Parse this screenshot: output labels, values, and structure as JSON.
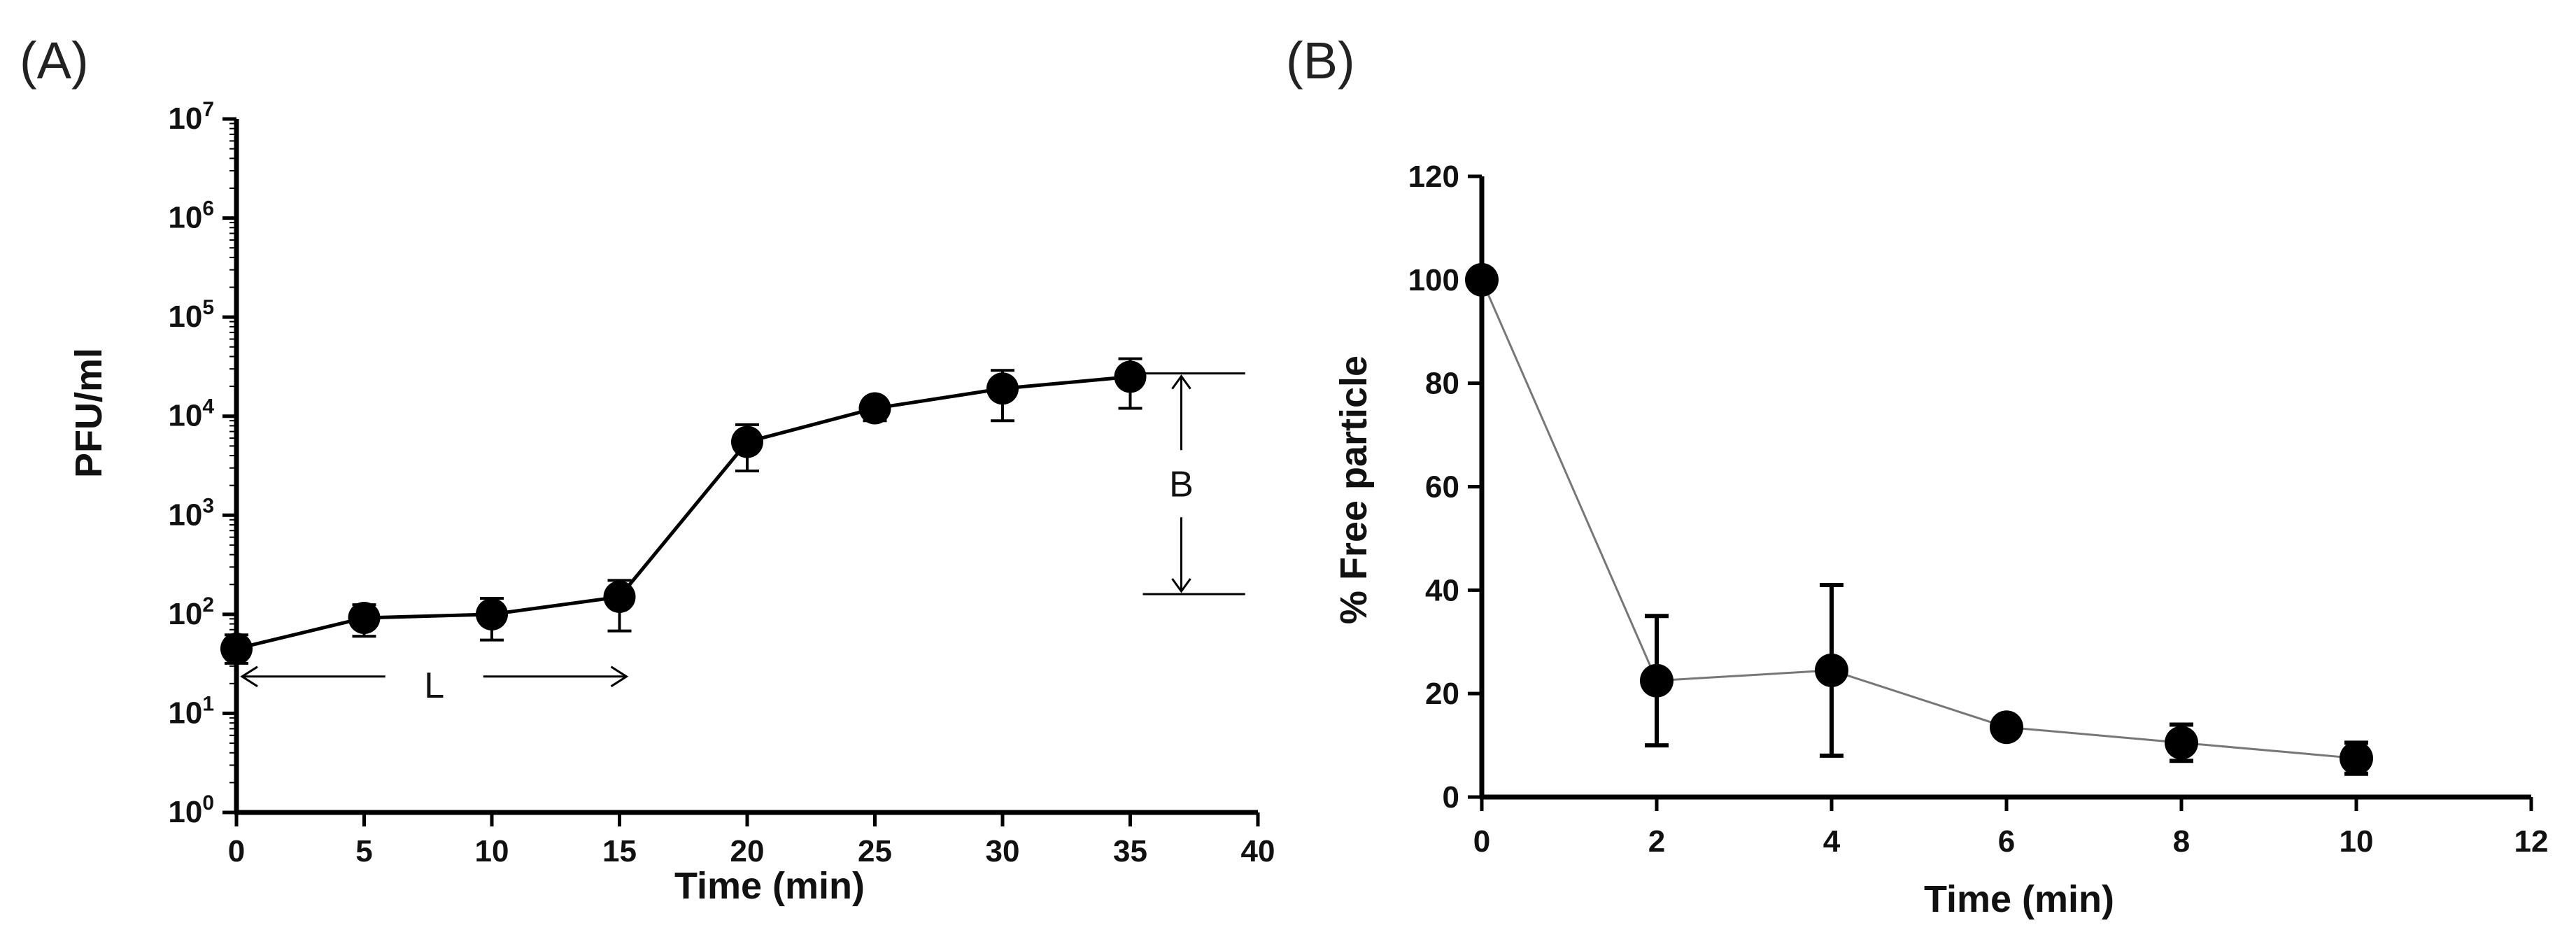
{
  "chart_data": [
    {
      "id": "A",
      "panel_label": "(A)",
      "type": "line",
      "yscale": "log",
      "xlabel": "Time (min)",
      "ylabel": "PFU/ml",
      "xlim": [
        0,
        40
      ],
      "ylim": [
        1,
        10000000
      ],
      "xticks": [
        0,
        5,
        10,
        15,
        20,
        25,
        30,
        35,
        40
      ],
      "yticks": [
        {
          "value": 1,
          "base": "10",
          "exp": "0"
        },
        {
          "value": 10,
          "base": "10",
          "exp": "1"
        },
        {
          "value": 100,
          "base": "10",
          "exp": "2"
        },
        {
          "value": 1000,
          "base": "10",
          "exp": "3"
        },
        {
          "value": 10000,
          "base": "10",
          "exp": "4"
        },
        {
          "value": 100000,
          "base": "10",
          "exp": "5"
        },
        {
          "value": 1000000,
          "base": "10",
          "exp": "6"
        },
        {
          "value": 10000000,
          "base": "10",
          "exp": "7"
        }
      ],
      "series": [
        {
          "name": "PFU/ml",
          "x": [
            0,
            5,
            10,
            15,
            20,
            25,
            30,
            35
          ],
          "y": [
            45,
            92,
            100,
            150,
            5500,
            12000,
            19000,
            25000
          ],
          "err_low": [
            32,
            60,
            55,
            68,
            2800,
            9000,
            9000,
            12000
          ],
          "err_high": [
            62,
            125,
            145,
            220,
            8200,
            15000,
            29000,
            38000
          ]
        }
      ],
      "annotations": {
        "latent": {
          "label": "L",
          "x_start": 0,
          "x_end": 15,
          "y": 20
        },
        "burst": {
          "label": "B",
          "x": 37,
          "y_low": 160,
          "y_high": 27000,
          "x_line_end": 39.5
        }
      }
    },
    {
      "id": "B",
      "panel_label": "(B)",
      "type": "line",
      "yscale": "linear",
      "xlabel": "Time (min)",
      "ylabel": "% Free particle",
      "xlim": [
        0,
        12
      ],
      "ylim": [
        0,
        120
      ],
      "xticks": [
        0,
        2,
        4,
        6,
        8,
        10,
        12
      ],
      "yticks": [
        0,
        20,
        40,
        60,
        80,
        100,
        120
      ],
      "series": [
        {
          "name": "% Free particle",
          "x": [
            0,
            2,
            4,
            6,
            8,
            10
          ],
          "y": [
            100,
            22.5,
            24.5,
            13.5,
            10.5,
            7.5
          ],
          "err": [
            0,
            12.5,
            16.5,
            0,
            3.5,
            3
          ]
        }
      ]
    }
  ]
}
